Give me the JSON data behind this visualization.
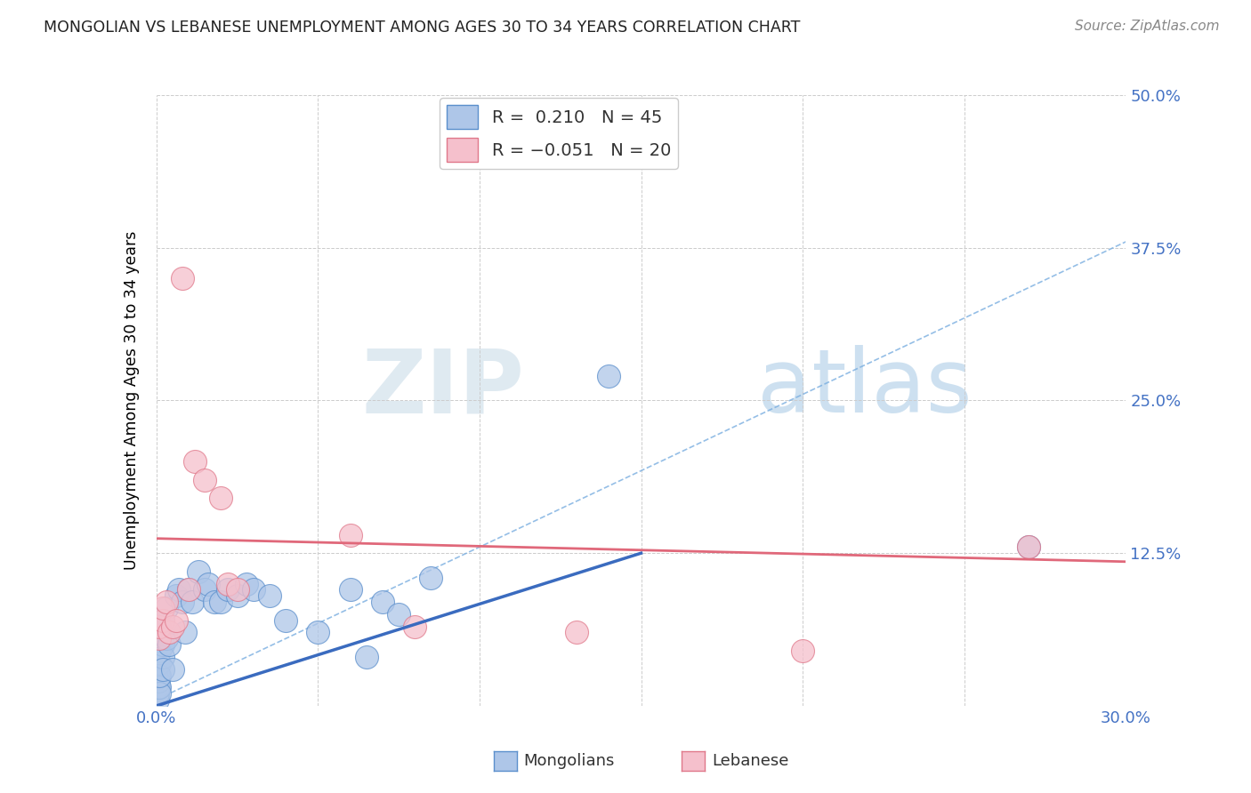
{
  "title": "MONGOLIAN VS LEBANESE UNEMPLOYMENT AMONG AGES 30 TO 34 YEARS CORRELATION CHART",
  "source": "Source: ZipAtlas.com",
  "xlabel_mongolians": "Mongolians",
  "xlabel_lebanese": "Lebanese",
  "ylabel": "Unemployment Among Ages 30 to 34 years",
  "xlim": [
    0.0,
    0.3
  ],
  "ylim": [
    0.0,
    0.5
  ],
  "mongolian_R": 0.21,
  "mongolian_N": 45,
  "lebanese_R": -0.051,
  "lebanese_N": 20,
  "mongolian_color": "#aec6e8",
  "mongolian_edge_color": "#5b8fcc",
  "mongolian_line_color": "#3a6bbf",
  "lebanese_color": "#f5c0cc",
  "lebanese_edge_color": "#e0788a",
  "lebanese_line_color": "#e0687a",
  "dashed_line_color": "#7aaee0",
  "watermark_zip_color": "#d8e8f5",
  "watermark_atlas_color": "#b8d4ea",
  "mon_x": [
    0.0003,
    0.0004,
    0.0005,
    0.0006,
    0.0007,
    0.0008,
    0.0009,
    0.001,
    0.001,
    0.001,
    0.001,
    0.0015,
    0.002,
    0.002,
    0.002,
    0.002,
    0.003,
    0.003,
    0.004,
    0.005,
    0.006,
    0.007,
    0.008,
    0.009,
    0.01,
    0.011,
    0.013,
    0.015,
    0.016,
    0.018,
    0.02,
    0.022,
    0.025,
    0.028,
    0.03,
    0.035,
    0.04,
    0.05,
    0.06,
    0.065,
    0.07,
    0.075,
    0.085,
    0.14,
    0.27
  ],
  "mon_y": [
    0.005,
    0.01,
    0.015,
    0.02,
    0.025,
    0.015,
    0.01,
    0.06,
    0.045,
    0.035,
    0.025,
    0.055,
    0.05,
    0.04,
    0.07,
    0.03,
    0.08,
    0.055,
    0.05,
    0.03,
    0.09,
    0.095,
    0.085,
    0.06,
    0.095,
    0.085,
    0.11,
    0.095,
    0.1,
    0.085,
    0.085,
    0.095,
    0.09,
    0.1,
    0.095,
    0.09,
    0.07,
    0.06,
    0.095,
    0.04,
    0.085,
    0.075,
    0.105,
    0.27,
    0.13
  ],
  "leb_x": [
    0.001,
    0.001,
    0.002,
    0.002,
    0.003,
    0.004,
    0.005,
    0.006,
    0.008,
    0.01,
    0.012,
    0.015,
    0.02,
    0.022,
    0.025,
    0.06,
    0.08,
    0.13,
    0.2,
    0.27
  ],
  "leb_y": [
    0.055,
    0.065,
    0.07,
    0.08,
    0.085,
    0.06,
    0.065,
    0.07,
    0.35,
    0.095,
    0.2,
    0.185,
    0.17,
    0.1,
    0.095,
    0.14,
    0.065,
    0.06,
    0.045,
    0.13
  ],
  "mon_line_x0": 0.0,
  "mon_line_y0": 0.0,
  "mon_line_x1": 0.15,
  "mon_line_y1": 0.125,
  "leb_line_x0": 0.0,
  "leb_line_y0": 0.137,
  "leb_line_x1": 0.3,
  "leb_line_y1": 0.118,
  "dash_line_x0": 0.0,
  "dash_line_y0": 0.005,
  "dash_line_x1": 0.3,
  "dash_line_y1": 0.38
}
